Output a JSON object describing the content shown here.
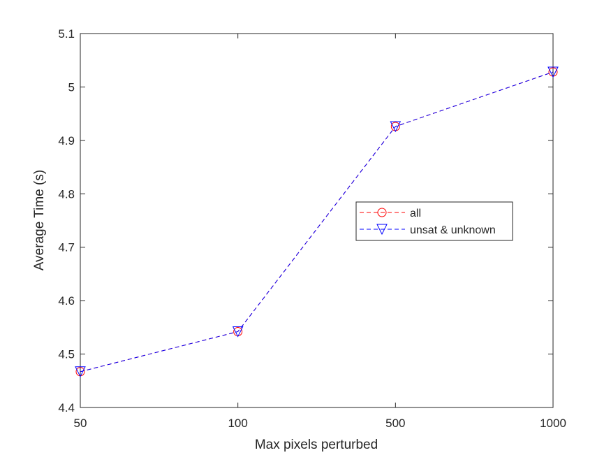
{
  "chart_data": {
    "type": "line",
    "title": "",
    "xlabel": "Max pixels perturbed",
    "ylabel": "Average Time (s)",
    "categories": [
      "50",
      "100",
      "500",
      "1000"
    ],
    "ylim": [
      4.4,
      5.1
    ],
    "yticks": [
      "4.4",
      "4.5",
      "4.6",
      "4.7",
      "4.8",
      "4.9",
      "5",
      "5.1"
    ],
    "grid": false,
    "legend_position": "center-right",
    "series": [
      {
        "name": "all",
        "marker": "circle",
        "line_style": "dashed",
        "color": "#ff0000",
        "values": [
          4.467,
          4.542,
          4.926,
          5.028
        ]
      },
      {
        "name": "unsat & unknown",
        "marker": "triangle-down",
        "line_style": "dashed",
        "color": "#0000ff",
        "values": [
          4.467,
          4.542,
          4.926,
          5.028
        ]
      }
    ]
  }
}
